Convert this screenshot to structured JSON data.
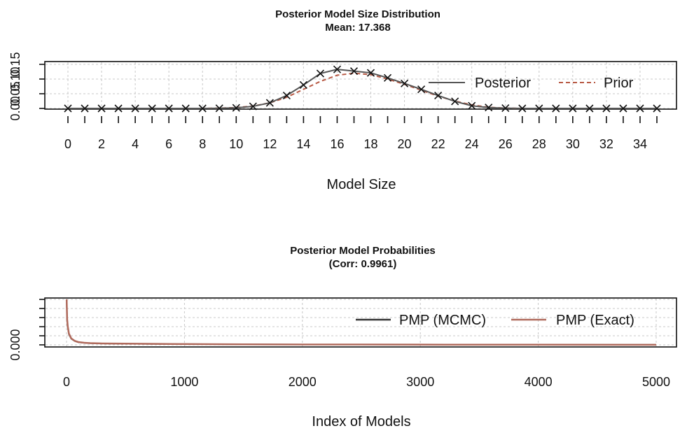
{
  "chart_data": [
    {
      "type": "line",
      "title": "Posterior Model Size Distribution",
      "subtitle": "Mean: 17.368",
      "xlabel": "Model Size",
      "ylabel": "",
      "x": [
        0,
        1,
        2,
        3,
        4,
        5,
        6,
        7,
        8,
        9,
        10,
        11,
        12,
        13,
        14,
        15,
        16,
        17,
        18,
        19,
        20,
        21,
        22,
        23,
        24,
        25,
        26,
        27,
        28,
        29,
        30,
        31,
        32,
        33,
        34,
        35
      ],
      "xlim": [
        0,
        35
      ],
      "ylim": [
        0,
        0.15
      ],
      "xtick_labels": [
        "0",
        "2",
        "4",
        "6",
        "8",
        "10",
        "12",
        "14",
        "16",
        "18",
        "20",
        "22",
        "24",
        "26",
        "28",
        "30",
        "32",
        "34"
      ],
      "ytick_labels": [
        "0.00",
        "0.05",
        "0.10",
        "0.15"
      ],
      "series": [
        {
          "name": "Posterior",
          "color": "#555555",
          "values": [
            0,
            0,
            0,
            0,
            0,
            0,
            0,
            0,
            0,
            0.0005,
            0.002,
            0.007,
            0.019,
            0.044,
            0.08,
            0.119,
            0.133,
            0.127,
            0.121,
            0.104,
            0.085,
            0.065,
            0.044,
            0.024,
            0.009,
            0.003,
            0.001,
            0,
            0,
            0,
            0,
            0,
            0,
            0,
            0,
            0
          ]
        },
        {
          "name": "Prior",
          "color": "#b85a45",
          "values": [
            0,
            0,
            0,
            0,
            0,
            0,
            0,
            0,
            0,
            0.001,
            0.003,
            0.008,
            0.019,
            0.038,
            0.065,
            0.092,
            0.113,
            0.12,
            0.115,
            0.1,
            0.082,
            0.062,
            0.042,
            0.025,
            0.012,
            0.004,
            0.001,
            0,
            0,
            0,
            0,
            0,
            0,
            0,
            0,
            0
          ]
        }
      ],
      "grid": true,
      "legend": "top-right"
    },
    {
      "type": "line",
      "title": "Posterior Model Probabilities",
      "subtitle": "(Corr: 0.9961)",
      "xlabel": "Index of Models",
      "ylabel": "",
      "xlim": [
        0,
        5000
      ],
      "ylim": [
        0,
        0.06
      ],
      "xtick_labels": [
        "0",
        "1000",
        "2000",
        "3000",
        "4000",
        "5000"
      ],
      "ytick_labels": [
        "0.000"
      ],
      "x": [
        1,
        5,
        10,
        20,
        40,
        70,
        100,
        150,
        200,
        300,
        500,
        800,
        1000,
        1500,
        2000,
        3000,
        4000,
        5000
      ],
      "series": [
        {
          "name": "PMP (MCMC)",
          "color": "#333333",
          "values": [
            0.06,
            0.033,
            0.024,
            0.014,
            0.008,
            0.005,
            0.0035,
            0.0027,
            0.0022,
            0.0018,
            0.0015,
            0.0012,
            0.001,
            0.0007,
            0.0005,
            0.0003,
            0.0002,
            0.0001
          ]
        },
        {
          "name": "PMP (Exact)",
          "color": "#b06a5c",
          "values": [
            0.06,
            0.034,
            0.025,
            0.015,
            0.0085,
            0.0052,
            0.0037,
            0.0028,
            0.0023,
            0.0019,
            0.0016,
            0.0013,
            0.001,
            0.0007,
            0.0005,
            0.0003,
            0.0002,
            0.0001
          ]
        }
      ],
      "grid": true,
      "legend": "top-right"
    }
  ]
}
